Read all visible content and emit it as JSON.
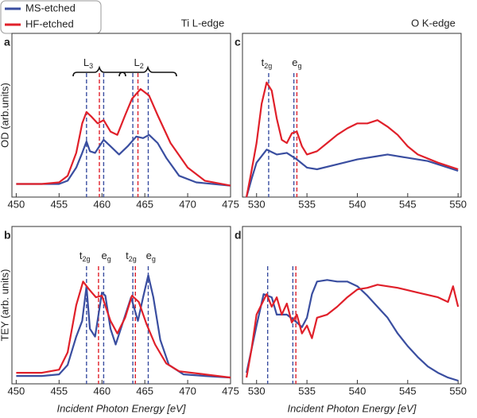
{
  "legend": [
    "MS-etched",
    "HF-etched"
  ],
  "chart_data": [
    {
      "type": "line",
      "letter": "a",
      "title": "Ti L-edge",
      "ylabel": "OD (arb.units)",
      "xlim": [
        449.5,
        475
      ],
      "xticks": [
        450,
        455,
        460,
        465,
        470,
        475
      ],
      "ylim": [
        0,
        1
      ],
      "series": [
        {
          "name": "MS-etched",
          "color": "#3a4ea0",
          "x": [
            450,
            453,
            455,
            456,
            457,
            457.7,
            458.2,
            458.6,
            459.2,
            460.2,
            461,
            462,
            463,
            464,
            464.8,
            465.5,
            466.5,
            467.5,
            469,
            471,
            475
          ],
          "values": [
            0.08,
            0.08,
            0.08,
            0.1,
            0.18,
            0.27,
            0.34,
            0.28,
            0.27,
            0.35,
            0.31,
            0.26,
            0.31,
            0.37,
            0.36,
            0.38,
            0.33,
            0.24,
            0.13,
            0.09,
            0.07
          ]
        },
        {
          "name": "HF-etched",
          "color": "#e0202a",
          "x": [
            450,
            453,
            455,
            456,
            457,
            457.7,
            458.2,
            458.8,
            459.5,
            460.2,
            461,
            461.8,
            462.7,
            463.5,
            464.5,
            465.5,
            466.5,
            468,
            470,
            472,
            475
          ],
          "values": [
            0.08,
            0.08,
            0.09,
            0.13,
            0.27,
            0.45,
            0.52,
            0.49,
            0.45,
            0.47,
            0.4,
            0.38,
            0.5,
            0.6,
            0.66,
            0.62,
            0.5,
            0.33,
            0.18,
            0.1,
            0.07
          ]
        }
      ],
      "vlines": [
        {
          "x": 458.2,
          "color": "#3a4ea0"
        },
        {
          "x": 459.7,
          "color": "#e0202a"
        },
        {
          "x": 460.2,
          "color": "#3a4ea0"
        },
        {
          "x": 463.6,
          "color": "#3a4ea0"
        },
        {
          "x": 464.2,
          "color": "#e0202a"
        },
        {
          "x": 465.4,
          "color": "#3a4ea0"
        }
      ],
      "annotations": [
        {
          "text": "L",
          "sub": "3",
          "x": 458.4
        },
        {
          "text": "L",
          "sub": "2",
          "x": 464.3
        }
      ]
    },
    {
      "type": "line",
      "letter": "b",
      "ylabel": "TEY (arb. units)",
      "xlabel": "Incident Photon Energy [eV]",
      "xlim": [
        449.5,
        475
      ],
      "xticks": [
        450,
        455,
        460,
        465,
        470,
        475
      ],
      "ylim": [
        0,
        1
      ],
      "series": [
        {
          "color": "#3a4ea0",
          "x": [
            450,
            453,
            455,
            456,
            457,
            457.7,
            458.2,
            458.6,
            459.2,
            460,
            460.4,
            461,
            461.6,
            462.5,
            463.4,
            464.2,
            464.8,
            465.4,
            466,
            466.8,
            467.8,
            469.5,
            472,
            475
          ],
          "values": [
            0.05,
            0.05,
            0.06,
            0.12,
            0.3,
            0.4,
            0.62,
            0.35,
            0.3,
            0.58,
            0.56,
            0.35,
            0.25,
            0.4,
            0.55,
            0.4,
            0.55,
            0.69,
            0.55,
            0.28,
            0.12,
            0.06,
            0.05,
            0.04
          ]
        },
        {
          "color": "#e0202a",
          "x": [
            450,
            453,
            455,
            456,
            457,
            457.8,
            458.5,
            459.3,
            460,
            461,
            461.8,
            462.7,
            463.5,
            464.3,
            465.2,
            466.2,
            467.5,
            469,
            472,
            475
          ],
          "values": [
            0.07,
            0.07,
            0.09,
            0.2,
            0.5,
            0.65,
            0.6,
            0.55,
            0.56,
            0.4,
            0.32,
            0.42,
            0.56,
            0.52,
            0.38,
            0.25,
            0.13,
            0.08,
            0.06,
            0.04
          ]
        }
      ],
      "vlines": [
        {
          "x": 458.2,
          "color": "#3a4ea0"
        },
        {
          "x": 459.6,
          "color": "#e0202a"
        },
        {
          "x": 460.2,
          "color": "#3a4ea0"
        },
        {
          "x": 463.6,
          "color": "#3a4ea0"
        },
        {
          "x": 463.9,
          "color": "#e0202a"
        },
        {
          "x": 465.4,
          "color": "#3a4ea0"
        }
      ],
      "annotations": [
        {
          "text": "t",
          "sub": "2g",
          "x": 458.0
        },
        {
          "text": "e",
          "sub": "g",
          "x": 460.5
        },
        {
          "text": "t",
          "sub": "2g",
          "x": 463.4
        },
        {
          "text": "e",
          "sub": "g",
          "x": 465.7
        }
      ]
    },
    {
      "type": "line",
      "letter": "c",
      "title": "O K-edge",
      "xlim": [
        528.6,
        550.3
      ],
      "xticks": [
        530,
        535,
        540,
        545,
        550
      ],
      "ylim": [
        0,
        1
      ],
      "series": [
        {
          "color": "#3a4ea0",
          "x": [
            529,
            529.5,
            530,
            531,
            532,
            533,
            534,
            535,
            536,
            538,
            540,
            542,
            543,
            545,
            547,
            550
          ],
          "values": [
            0,
            0.11,
            0.21,
            0.29,
            0.26,
            0.27,
            0.23,
            0.18,
            0.17,
            0.2,
            0.23,
            0.25,
            0.26,
            0.24,
            0.22,
            0.16
          ]
        },
        {
          "color": "#e0202a",
          "x": [
            529,
            529.5,
            530,
            530.5,
            531,
            531.5,
            532,
            532.5,
            533,
            533.5,
            534,
            534.5,
            535,
            536,
            537,
            538,
            539,
            540,
            541,
            542,
            543,
            544,
            545,
            546,
            548,
            550
          ],
          "values": [
            0,
            0.16,
            0.33,
            0.57,
            0.7,
            0.65,
            0.48,
            0.35,
            0.33,
            0.39,
            0.4,
            0.31,
            0.26,
            0.28,
            0.33,
            0.38,
            0.42,
            0.45,
            0.45,
            0.47,
            0.43,
            0.38,
            0.31,
            0.26,
            0.21,
            0.17
          ]
        }
      ],
      "vlines": [
        {
          "x": 531.2,
          "color": "#3a4ea0"
        },
        {
          "x": 533.7,
          "color": "#3a4ea0"
        },
        {
          "x": 534.0,
          "color": "#e0202a"
        }
      ],
      "annotations": [
        {
          "text": "t",
          "sub": "2g",
          "x": 531.0
        },
        {
          "text": "e",
          "sub": "g",
          "x": 534.0
        }
      ]
    },
    {
      "type": "line",
      "letter": "d",
      "xlabel": "Incident Photon Energy [eV]",
      "xlim": [
        528.6,
        550.3
      ],
      "xticks": [
        530,
        535,
        540,
        545,
        550
      ],
      "ylim": [
        0,
        1
      ],
      "series": [
        {
          "color": "#3a4ea0",
          "x": [
            529,
            530,
            530.7,
            531.5,
            532,
            533,
            534,
            534.5,
            535,
            535.5,
            536,
            537,
            538,
            539,
            540,
            541,
            542,
            543,
            544,
            545,
            546,
            547,
            548,
            549,
            550
          ],
          "values": [
            0.07,
            0.37,
            0.57,
            0.55,
            0.44,
            0.44,
            0.39,
            0.36,
            0.42,
            0.57,
            0.65,
            0.66,
            0.65,
            0.65,
            0.62,
            0.56,
            0.49,
            0.42,
            0.32,
            0.24,
            0.17,
            0.11,
            0.07,
            0.04,
            0.02
          ]
        },
        {
          "color": "#e0202a",
          "x": [
            529,
            529.5,
            530,
            531,
            531.5,
            532,
            532.5,
            533,
            533.5,
            534,
            534.5,
            535,
            535.5,
            536,
            537,
            538,
            539,
            540,
            541,
            542,
            544,
            546,
            548,
            549,
            549.5,
            550
          ],
          "values": [
            0.04,
            0.22,
            0.44,
            0.57,
            0.49,
            0.55,
            0.44,
            0.51,
            0.39,
            0.44,
            0.32,
            0.37,
            0.29,
            0.42,
            0.44,
            0.49,
            0.55,
            0.6,
            0.61,
            0.63,
            0.61,
            0.58,
            0.55,
            0.52,
            0.62,
            0.49
          ]
        }
      ],
      "vlines": [
        {
          "x": 531.1,
          "color": "#3a4ea0"
        },
        {
          "x": 533.6,
          "color": "#3a4ea0"
        },
        {
          "x": 533.9,
          "color": "#e0202a"
        }
      ]
    }
  ]
}
